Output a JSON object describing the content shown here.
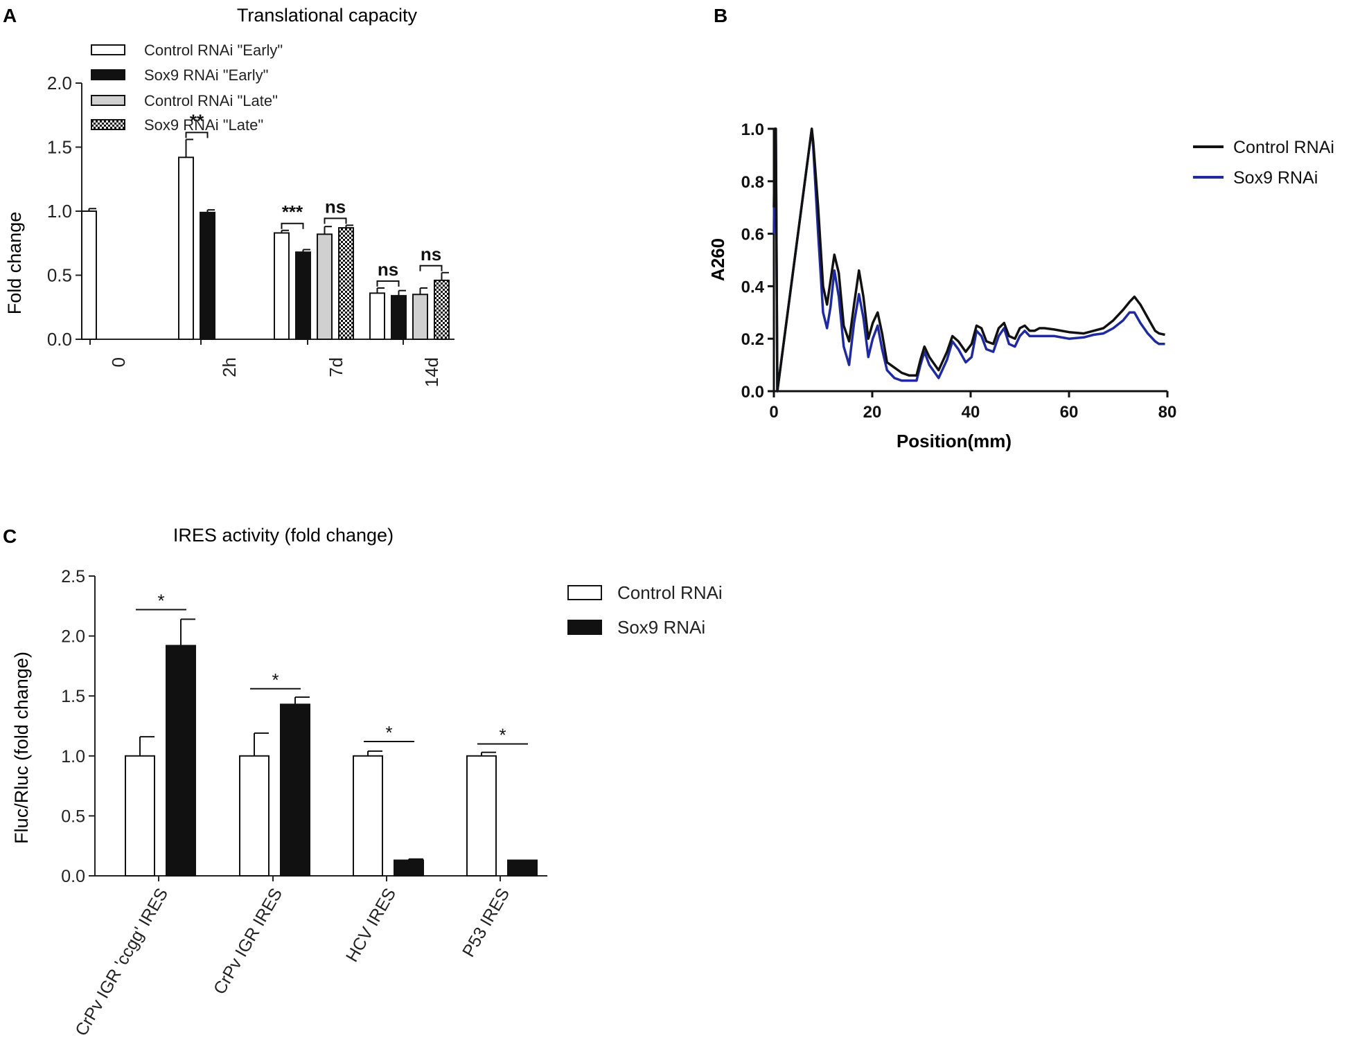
{
  "panels": {
    "a": "A",
    "b": "B",
    "c": "C"
  },
  "chart_data": [
    {
      "id": "A",
      "type": "bar",
      "title": "Translational capacity",
      "xlabel": "",
      "ylabel": "Fold change",
      "ylim": [
        0,
        2.0
      ],
      "yticks": [
        "0.0",
        "0.5",
        "1.0",
        "1.5",
        "2.0"
      ],
      "yticks_values": [
        0,
        0.5,
        1.0,
        1.5,
        2.0
      ],
      "grid": false,
      "legend_position": "top-left",
      "categories": [
        "0",
        "2h",
        "7d",
        "14d"
      ],
      "series": [
        {
          "name": "Control RNAi \"Early\"",
          "style": "white",
          "values": [
            1.0,
            1.42,
            0.83,
            0.36
          ],
          "errors": [
            0.02,
            0.14,
            0.02,
            0.04
          ]
        },
        {
          "name": "Sox9 RNAi \"Early\"",
          "style": "black",
          "values": [
            null,
            0.99,
            0.68,
            0.34
          ],
          "errors": [
            null,
            0.02,
            0.02,
            0.04
          ]
        },
        {
          "name": "Control RNAi \"Late\"",
          "style": "grey",
          "values": [
            null,
            null,
            0.82,
            0.35
          ],
          "errors": [
            null,
            null,
            0.06,
            0.05
          ]
        },
        {
          "name": "Sox9 RNAi \"Late\"",
          "style": "checker",
          "values": [
            null,
            null,
            0.87,
            0.46
          ],
          "errors": [
            null,
            null,
            0.02,
            0.06
          ]
        }
      ],
      "annotations": [
        {
          "text": "**",
          "category": 1,
          "pair": [
            0,
            1
          ]
        },
        {
          "text": "***",
          "category": 2,
          "pair": [
            0,
            1
          ]
        },
        {
          "text": "ns",
          "category": 2,
          "pair": [
            2,
            3
          ]
        },
        {
          "text": "ns",
          "category": 3,
          "pair": [
            0,
            1
          ]
        },
        {
          "text": "ns",
          "category": 3,
          "pair": [
            2,
            3
          ]
        }
      ]
    },
    {
      "id": "B",
      "type": "line",
      "title": "",
      "xlabel": "Position(mm)",
      "ylabel": "A260",
      "xlim": [
        0,
        80
      ],
      "ylim": [
        0,
        1.0
      ],
      "xticks": [
        "0",
        "20",
        "40",
        "60",
        "80"
      ],
      "xticks_values": [
        0,
        20,
        40,
        60,
        80
      ],
      "yticks": [
        "0.0",
        "0.2",
        "0.4",
        "0.6",
        "0.8",
        "1.0"
      ],
      "yticks_values": [
        0,
        0.2,
        0.4,
        0.6,
        0.8,
        1.0
      ],
      "grid": false,
      "legend_position": "top-right",
      "series": [
        {
          "name": "Control RNAi",
          "color": "#111111",
          "x": [
            0,
            0.2,
            0.4,
            0.7,
            7.7,
            8,
            9,
            10,
            10.8,
            11.5,
            12.3,
            13.2,
            14.2,
            15.3,
            16.3,
            17.3,
            18.2,
            19.2,
            20.1,
            21.1,
            22,
            23,
            24.5,
            26,
            27.5,
            29,
            29.8,
            30.6,
            31.6,
            33.5,
            35.2,
            36.3,
            37.5,
            39,
            40.2,
            41.2,
            42.2,
            43.2,
            44.6,
            45.7,
            46.8,
            47.8,
            49,
            50,
            51,
            52,
            53,
            54,
            55,
            57,
            60,
            63,
            65,
            67,
            69,
            71,
            72.3,
            73.3,
            74.5,
            76,
            77.5,
            78.3,
            79.5
          ],
          "y": [
            0.7,
            1.0,
            1.0,
            0.0,
            1.0,
            0.95,
            0.7,
            0.4,
            0.33,
            0.42,
            0.52,
            0.45,
            0.25,
            0.19,
            0.33,
            0.46,
            0.36,
            0.2,
            0.26,
            0.3,
            0.22,
            0.11,
            0.09,
            0.07,
            0.06,
            0.06,
            0.12,
            0.17,
            0.13,
            0.08,
            0.15,
            0.21,
            0.19,
            0.15,
            0.18,
            0.25,
            0.24,
            0.19,
            0.18,
            0.24,
            0.26,
            0.21,
            0.2,
            0.24,
            0.25,
            0.23,
            0.23,
            0.24,
            0.24,
            0.235,
            0.225,
            0.22,
            0.23,
            0.24,
            0.27,
            0.31,
            0.34,
            0.36,
            0.33,
            0.28,
            0.23,
            0.22,
            0.215
          ]
        },
        {
          "name": "Sox9 RNAi",
          "color": "#1f2a9e",
          "x": [
            0,
            0.2,
            0.4,
            0.7,
            7.7,
            8,
            9,
            10,
            10.8,
            11.5,
            12.3,
            13.2,
            14.2,
            15.3,
            16.3,
            17.3,
            18.2,
            19.2,
            20.1,
            21.1,
            22,
            23,
            24.5,
            26,
            27.5,
            29,
            29.8,
            30.6,
            31.6,
            33.5,
            35.2,
            36.3,
            37.5,
            39,
            40.2,
            41.2,
            42.2,
            43.2,
            44.6,
            45.7,
            46.8,
            47.8,
            49,
            50,
            51,
            52,
            53,
            54,
            55,
            57,
            60,
            63,
            65,
            67,
            69,
            71,
            72.3,
            73.3,
            74.5,
            76,
            77.5,
            78.3,
            79.5
          ],
          "y": [
            0.6,
            1.0,
            1.0,
            0.0,
            1.0,
            0.93,
            0.6,
            0.3,
            0.24,
            0.32,
            0.46,
            0.36,
            0.17,
            0.1,
            0.26,
            0.37,
            0.28,
            0.13,
            0.2,
            0.25,
            0.16,
            0.08,
            0.05,
            0.04,
            0.04,
            0.04,
            0.1,
            0.15,
            0.1,
            0.05,
            0.12,
            0.19,
            0.16,
            0.11,
            0.13,
            0.23,
            0.21,
            0.16,
            0.15,
            0.21,
            0.24,
            0.18,
            0.17,
            0.21,
            0.23,
            0.21,
            0.21,
            0.21,
            0.21,
            0.21,
            0.2,
            0.205,
            0.215,
            0.22,
            0.24,
            0.27,
            0.3,
            0.3,
            0.26,
            0.22,
            0.19,
            0.18,
            0.18
          ]
        }
      ]
    },
    {
      "id": "C",
      "type": "bar",
      "title": "IRES activity (fold change)",
      "xlabel": "",
      "ylabel": "Fluc/Rluc (fold change)",
      "ylim": [
        0,
        2.5
      ],
      "yticks": [
        "0.0",
        "0.5",
        "1.0",
        "1.5",
        "2.0",
        "2.5"
      ],
      "yticks_values": [
        0,
        0.5,
        1.0,
        1.5,
        2.0,
        2.5
      ],
      "grid": false,
      "legend_position": "top-right",
      "categories": [
        "CrPv IGR 'ccgg' IRES",
        "CrPv IGR IRES",
        "HCV IRES",
        "P53 IRES"
      ],
      "series": [
        {
          "name": "Control RNAi",
          "style": "white",
          "values": [
            1.0,
            1.0,
            1.0,
            1.0
          ],
          "errors": [
            0.16,
            0.19,
            0.04,
            0.03
          ]
        },
        {
          "name": "Sox9 RNAi",
          "style": "black",
          "values": [
            1.92,
            1.43,
            0.13,
            0.13
          ],
          "errors": [
            0.22,
            0.06,
            0.01,
            0.0
          ]
        }
      ],
      "annotations": [
        {
          "text": "*",
          "category": 0,
          "level": 2.22
        },
        {
          "text": "*",
          "category": 1,
          "level": 1.56
        },
        {
          "text": "*",
          "category": 2,
          "level": 1.12
        },
        {
          "text": "*",
          "category": 3,
          "level": 1.1
        }
      ]
    }
  ]
}
